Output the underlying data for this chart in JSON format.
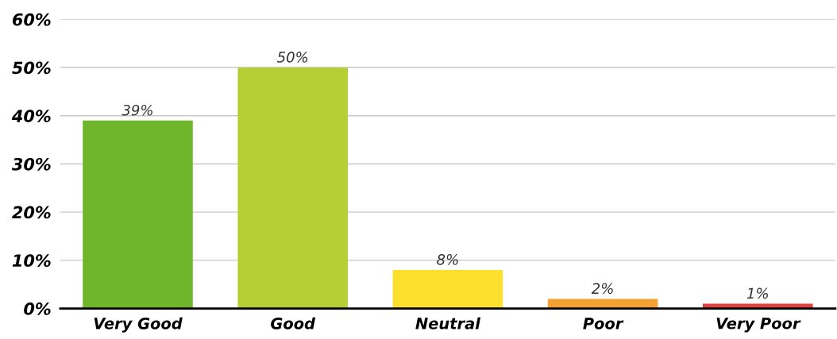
{
  "chart_data": {
    "type": "bar",
    "categories": [
      "Very Good",
      "Good",
      "Neutral",
      "Poor",
      "Very Poor"
    ],
    "values": [
      39,
      50,
      8,
      2,
      1
    ],
    "value_labels": [
      "39%",
      "50%",
      "8%",
      "2%",
      "1%"
    ],
    "colors": [
      "#70b62c",
      "#b5cf35",
      "#fde02d",
      "#f5a033",
      "#e2403f"
    ],
    "ylim": [
      0,
      60
    ],
    "yticks": [
      {
        "value": 0,
        "label": "0%"
      },
      {
        "value": 10,
        "label": "10%"
      },
      {
        "value": 20,
        "label": "20%"
      },
      {
        "value": 30,
        "label": "30%"
      },
      {
        "value": 40,
        "label": "40%"
      },
      {
        "value": 50,
        "label": "50%"
      },
      {
        "value": 60,
        "label": "60%"
      }
    ],
    "grid": "y",
    "legend": false
  }
}
